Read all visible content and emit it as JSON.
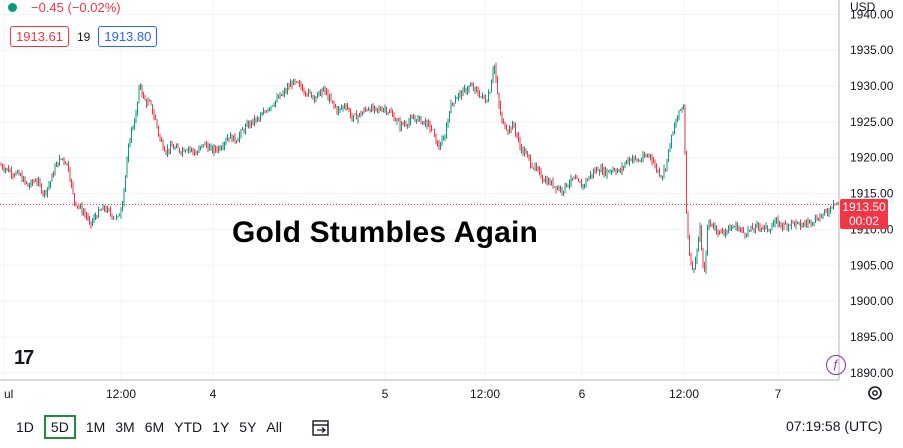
{
  "legend": {
    "change": "−0.45 (−0.02%)"
  },
  "quotes": {
    "bid": "1913.61",
    "spread": "19",
    "ask": "1913.80"
  },
  "currency": "USD",
  "headline": "Gold Stumbles Again",
  "logo": "17",
  "last_price": {
    "price": "1913.50",
    "countdown": "00:02"
  },
  "ranges": [
    "1D",
    "5D",
    "1M",
    "3M",
    "6M",
    "YTD",
    "1Y",
    "5Y",
    "All"
  ],
  "active_range": "5D",
  "clock": "07:19:58 (UTC)",
  "purple_badge": "ƒ",
  "chart_data": {
    "type": "candlestick",
    "x_ticks": [
      "ul",
      "12:00",
      "4",
      "5",
      "12:00",
      "6",
      "12:00",
      "7"
    ],
    "y_ticks": [
      1890,
      1895,
      1900,
      1905,
      1910,
      1915,
      1920,
      1925,
      1930,
      1935,
      1940
    ],
    "ylim": [
      1889,
      1942
    ],
    "grid": true,
    "last_price": 1913.5,
    "up_color": "#089981",
    "down_color": "#f23645",
    "price_path": [
      [
        0,
        1919
      ],
      [
        6,
        1918.5
      ],
      [
        12,
        1918
      ],
      [
        20,
        1917.5
      ],
      [
        28,
        1916
      ],
      [
        36,
        1917
      ],
      [
        44,
        1915
      ],
      [
        50,
        1916.5
      ],
      [
        56,
        1919
      ],
      [
        62,
        1920
      ],
      [
        68,
        1919
      ],
      [
        74,
        1914
      ],
      [
        80,
        1913
      ],
      [
        86,
        1912
      ],
      [
        90,
        1910.5
      ],
      [
        96,
        1912
      ],
      [
        104,
        1913
      ],
      [
        112,
        1912
      ],
      [
        118,
        1911.5
      ],
      [
        122,
        1913.5
      ],
      [
        126,
        1918
      ],
      [
        130,
        1923
      ],
      [
        136,
        1926
      ],
      [
        140,
        1930.5
      ],
      [
        144,
        1928
      ],
      [
        150,
        1927.5
      ],
      [
        156,
        1925
      ],
      [
        160,
        1922.5
      ],
      [
        166,
        1921
      ],
      [
        172,
        1921.5
      ],
      [
        180,
        1921
      ],
      [
        188,
        1921.5
      ],
      [
        196,
        1920.5
      ],
      [
        204,
        1922
      ],
      [
        212,
        1921
      ],
      [
        220,
        1921.5
      ],
      [
        228,
        1923
      ],
      [
        236,
        1922.5
      ],
      [
        244,
        1924
      ],
      [
        252,
        1925
      ],
      [
        260,
        1925.5
      ],
      [
        268,
        1927
      ],
      [
        276,
        1928
      ],
      [
        284,
        1929
      ],
      [
        292,
        1930.5
      ],
      [
        300,
        1930
      ],
      [
        308,
        1929
      ],
      [
        316,
        1928.5
      ],
      [
        324,
        1929.5
      ],
      [
        330,
        1928
      ],
      [
        338,
        1926.5
      ],
      [
        346,
        1927.5
      ],
      [
        352,
        1925.5
      ],
      [
        360,
        1926
      ],
      [
        368,
        1927
      ],
      [
        376,
        1926.5
      ],
      [
        384,
        1927
      ],
      [
        392,
        1926
      ],
      [
        400,
        1924.5
      ],
      [
        408,
        1925
      ],
      [
        416,
        1925.5
      ],
      [
        424,
        1925
      ],
      [
        432,
        1924
      ],
      [
        438,
        1921.5
      ],
      [
        444,
        1922.5
      ],
      [
        450,
        1927
      ],
      [
        456,
        1928.5
      ],
      [
        462,
        1929
      ],
      [
        470,
        1930
      ],
      [
        478,
        1929
      ],
      [
        486,
        1928
      ],
      [
        490,
        1929.5
      ],
      [
        494,
        1933.5
      ],
      [
        498,
        1928
      ],
      [
        502,
        1925
      ],
      [
        508,
        1924
      ],
      [
        514,
        1924.5
      ],
      [
        520,
        1921.5
      ],
      [
        526,
        1920.5
      ],
      [
        532,
        1919
      ],
      [
        538,
        1918
      ],
      [
        544,
        1917
      ],
      [
        550,
        1916.5
      ],
      [
        556,
        1916
      ],
      [
        562,
        1915.5
      ],
      [
        568,
        1916.5
      ],
      [
        574,
        1917
      ],
      [
        582,
        1916
      ],
      [
        590,
        1917.5
      ],
      [
        598,
        1918.5
      ],
      [
        606,
        1918
      ],
      [
        614,
        1918.5
      ],
      [
        620,
        1918
      ],
      [
        626,
        1919.5
      ],
      [
        632,
        1920
      ],
      [
        638,
        1919.5
      ],
      [
        644,
        1920
      ],
      [
        650,
        1920.5
      ],
      [
        656,
        1918.5
      ],
      [
        662,
        1917.5
      ],
      [
        666,
        1919
      ],
      [
        670,
        1922
      ],
      [
        674,
        1924
      ],
      [
        678,
        1926
      ],
      [
        684,
        1927.5
      ],
      [
        686,
        1914
      ],
      [
        688,
        1909
      ],
      [
        692,
        1904
      ],
      [
        696,
        1906
      ],
      [
        700,
        1910
      ],
      [
        704,
        1903
      ],
      [
        708,
        1911
      ],
      [
        714,
        1910.5
      ],
      [
        720,
        1909.5
      ],
      [
        728,
        1910
      ],
      [
        736,
        1910.5
      ],
      [
        744,
        1909.5
      ],
      [
        752,
        1910
      ],
      [
        760,
        1910.5
      ],
      [
        768,
        1910
      ],
      [
        776,
        1911
      ],
      [
        784,
        1910.5
      ],
      [
        792,
        1911
      ],
      [
        800,
        1910.5
      ],
      [
        808,
        1911
      ],
      [
        816,
        1911.5
      ],
      [
        822,
        1912
      ],
      [
        828,
        1912.5
      ],
      [
        834,
        1914
      ],
      [
        839,
        1913.5
      ]
    ]
  }
}
